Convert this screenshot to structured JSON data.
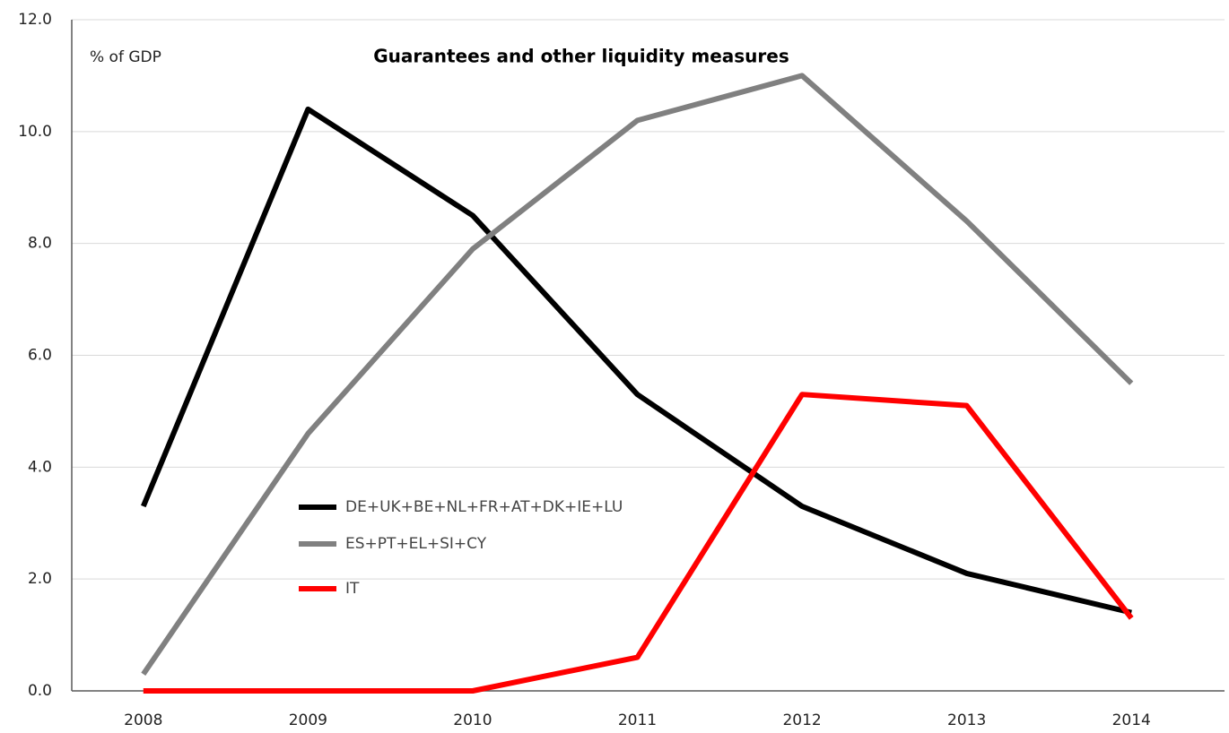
{
  "chart_data": {
    "type": "line",
    "title": "Guarantees and other liquidity measures",
    "y_label": "% of GDP",
    "categories": [
      "2008",
      "2009",
      "2010",
      "2011",
      "2012",
      "2013",
      "2014"
    ],
    "series": [
      {
        "name": "DE+UK+BE+NL+FR+AT+DK+IE+LU",
        "color": "#000000",
        "values": [
          3.3,
          10.4,
          8.5,
          5.3,
          3.3,
          2.1,
          1.4
        ]
      },
      {
        "name": "ES+PT+EL+SI+CY",
        "color": "#808080",
        "values": [
          0.3,
          4.6,
          7.9,
          10.2,
          11.0,
          8.4,
          5.5
        ]
      },
      {
        "name": "IT",
        "color": "#ff0000",
        "values": [
          0,
          0,
          0,
          0.6,
          5.3,
          5.1,
          1.3
        ]
      }
    ],
    "ylim": [
      0,
      12
    ],
    "yticks": [
      {
        "value": 0,
        "label": "0.0"
      },
      {
        "value": 2,
        "label": "2.0"
      },
      {
        "value": 4,
        "label": "4.0"
      },
      {
        "value": 6,
        "label": "6.0"
      },
      {
        "value": 8,
        "label": "8.0"
      },
      {
        "value": 10,
        "label": "10.0"
      },
      {
        "value": 12,
        "label": "12.0"
      }
    ],
    "grid": true,
    "legend": "center-left"
  }
}
